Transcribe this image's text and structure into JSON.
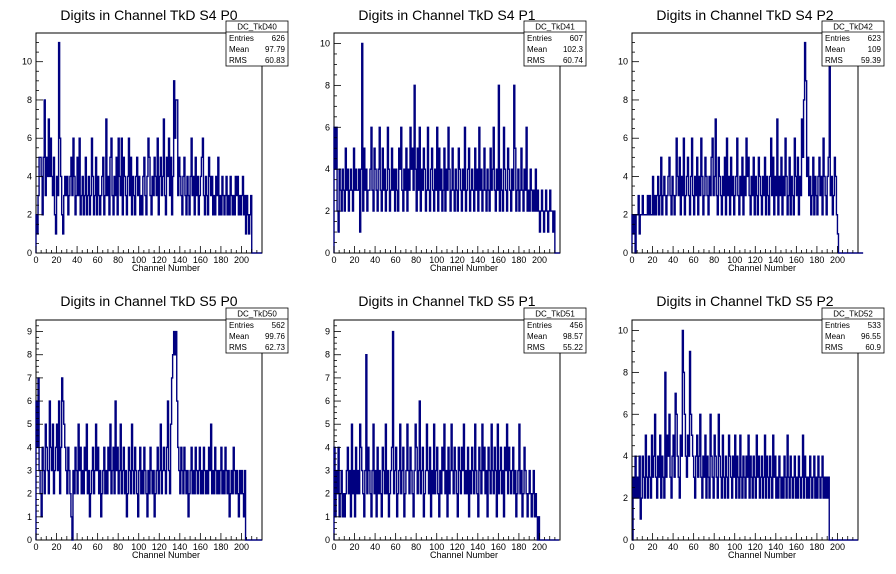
{
  "chart_data": [
    {
      "type": "bar",
      "id": "DC_TkD40",
      "title": "Digits in Channel TkD S4 P0",
      "xlabel": "Channel Number",
      "ylabel": "",
      "xlim": [
        0,
        220
      ],
      "ylim": [
        0,
        11.5
      ],
      "xticks": [
        0,
        20,
        40,
        60,
        80,
        100,
        120,
        140,
        160,
        180,
        200
      ],
      "yticks": [
        0,
        2,
        4,
        6,
        8,
        10
      ],
      "stats": {
        "name": "DC_TkD40",
        "rows": [
          [
            "Entries",
            "626"
          ],
          [
            "Mean",
            "97.79"
          ],
          [
            "RMS",
            "60.83"
          ]
        ]
      },
      "values": [
        2,
        1,
        3,
        5,
        5,
        4,
        2,
        5,
        8,
        3,
        5,
        4,
        7,
        4,
        6,
        4,
        3,
        5,
        2,
        1,
        4,
        3,
        11,
        6,
        4,
        2,
        1,
        3,
        4,
        3,
        4,
        2,
        3,
        4,
        5,
        3,
        6,
        4,
        2,
        3,
        5,
        3,
        6,
        2,
        3,
        4,
        2,
        3,
        5,
        2,
        3,
        4,
        2,
        3,
        6,
        4,
        2,
        3,
        5,
        2,
        4,
        3,
        2,
        3,
        4,
        5,
        2,
        3,
        7,
        3,
        4,
        2,
        5,
        6,
        3,
        2,
        4,
        3,
        5,
        2,
        6,
        4,
        3,
        6,
        2,
        5,
        4,
        3,
        2,
        4,
        6,
        3,
        5,
        2,
        4,
        3,
        2,
        4,
        5,
        3,
        4,
        2,
        3,
        2,
        4,
        5,
        3,
        2,
        4,
        6,
        5,
        3,
        2,
        4,
        3,
        5,
        4,
        3,
        6,
        2,
        4,
        5,
        3,
        4,
        7,
        3,
        2,
        5,
        4,
        6,
        3,
        5,
        2,
        4,
        9,
        6,
        8,
        8,
        3,
        5,
        4,
        3,
        2,
        4,
        5,
        3,
        2,
        4,
        3,
        2,
        4,
        6,
        3,
        4,
        2,
        5,
        3,
        4,
        2,
        3,
        4,
        5,
        6,
        3,
        2,
        4,
        3,
        2,
        5,
        4,
        3,
        4,
        2,
        3,
        2,
        4,
        3,
        5,
        2,
        3,
        2,
        4,
        3,
        2,
        3,
        4,
        2,
        3,
        2,
        4,
        3,
        2,
        3,
        2,
        4,
        3,
        4,
        2,
        3,
        2,
        3,
        4,
        2,
        3,
        1,
        3,
        2,
        1,
        2,
        3,
        0,
        0,
        0,
        0,
        0,
        0,
        0,
        0,
        0,
        0
      ]
    },
    {
      "type": "bar",
      "id": "DC_TkD41",
      "title": "Digits in Channel TkD S4 P1",
      "xlabel": "Channel Number",
      "ylabel": "",
      "xlim": [
        0,
        220
      ],
      "ylim": [
        0,
        10.5
      ],
      "xticks": [
        0,
        20,
        40,
        60,
        80,
        100,
        120,
        140,
        160,
        180,
        200
      ],
      "yticks": [
        0,
        2,
        4,
        6,
        8,
        10
      ],
      "stats": {
        "name": "DC_TkD41",
        "rows": [
          [
            "Entries",
            "607"
          ],
          [
            "Mean",
            "102.3"
          ],
          [
            "RMS",
            "60.74"
          ]
        ]
      },
      "values": [
        6,
        4,
        6,
        2,
        1,
        4,
        3,
        2,
        4,
        3,
        2,
        5,
        3,
        4,
        2,
        3,
        4,
        3,
        2,
        5,
        3,
        4,
        3,
        3,
        4,
        1,
        4,
        10,
        2,
        5,
        3,
        4,
        2,
        3,
        3,
        4,
        6,
        3,
        2,
        5,
        4,
        3,
        2,
        4,
        6,
        3,
        2,
        5,
        3,
        4,
        2,
        3,
        6,
        4,
        2,
        3,
        5,
        3,
        4,
        2,
        4,
        3,
        2,
        5,
        4,
        6,
        3,
        2,
        4,
        3,
        5,
        2,
        4,
        3,
        6,
        4,
        5,
        3,
        8,
        4,
        2,
        5,
        3,
        6,
        2,
        4,
        3,
        5,
        4,
        2,
        3,
        6,
        3,
        2,
        4,
        5,
        3,
        2,
        4,
        3,
        6,
        2,
        5,
        3,
        4,
        2,
        3,
        5,
        2,
        4,
        3,
        6,
        4,
        2,
        3,
        5,
        3,
        2,
        4,
        3,
        2,
        5,
        4,
        3,
        2,
        4,
        3,
        6,
        2,
        3,
        4,
        5,
        2,
        3,
        4,
        3,
        2,
        5,
        3,
        4,
        2,
        6,
        3,
        4,
        2,
        3,
        5,
        3,
        2,
        4,
        3,
        2,
        5,
        3,
        4,
        6,
        3,
        2,
        4,
        3,
        8,
        2,
        4,
        3,
        2,
        6,
        4,
        3,
        2,
        5,
        4,
        3,
        2,
        4,
        3,
        8,
        5,
        2,
        3,
        4,
        2,
        3,
        5,
        3,
        2,
        4,
        3,
        6,
        2,
        3,
        2,
        4,
        3,
        2,
        3,
        2,
        4,
        2,
        3,
        2,
        1,
        2,
        3,
        2,
        1,
        2,
        3,
        2,
        1,
        2,
        3,
        2,
        2,
        1,
        2,
        0,
        0,
        0,
        0,
        0
      ]
    },
    {
      "type": "bar",
      "id": "DC_TkD42",
      "title": "Digits in Channel TkD S4 P2",
      "xlabel": "Channel Number",
      "ylabel": "",
      "xlim": [
        0,
        220
      ],
      "ylim": [
        0,
        11.5
      ],
      "xticks": [
        0,
        20,
        40,
        60,
        80,
        100,
        120,
        140,
        160,
        180,
        200
      ],
      "yticks": [
        0,
        2,
        4,
        6,
        8,
        10
      ],
      "stats": {
        "name": "DC_TkD42",
        "rows": [
          [
            "Entries",
            "623"
          ],
          [
            "Mean",
            "109"
          ],
          [
            "RMS",
            "59.39"
          ]
        ]
      },
      "values": [
        2,
        1,
        2,
        0,
        2,
        2,
        3,
        1,
        2,
        2,
        3,
        2,
        2,
        2,
        2,
        3,
        2,
        3,
        2,
        2,
        4,
        2,
        3,
        2,
        3,
        4,
        2,
        3,
        5,
        2,
        3,
        4,
        3,
        2,
        3,
        4,
        5,
        3,
        2,
        4,
        3,
        2,
        3,
        6,
        4,
        3,
        5,
        2,
        4,
        3,
        6,
        2,
        3,
        4,
        5,
        3,
        2,
        4,
        6,
        3,
        2,
        4,
        3,
        5,
        2,
        4,
        3,
        6,
        4,
        2,
        3,
        5,
        4,
        3,
        2,
        4,
        3,
        5,
        6,
        3,
        4,
        7,
        3,
        2,
        5,
        4,
        3,
        2,
        4,
        3,
        5,
        2,
        6,
        3,
        4,
        2,
        5,
        3,
        4,
        2,
        3,
        4,
        6,
        3,
        2,
        4,
        3,
        5,
        2,
        4,
        3,
        6,
        4,
        5,
        3,
        2,
        4,
        3,
        5,
        2,
        4,
        3,
        2,
        5,
        4,
        3,
        2,
        4,
        3,
        5,
        2,
        4,
        3,
        2,
        4,
        6,
        3,
        5,
        2,
        4,
        3,
        7,
        2,
        4,
        3,
        5,
        2,
        4,
        3,
        6,
        4,
        2,
        3,
        5,
        2,
        4,
        3,
        2,
        6,
        4,
        3,
        5,
        2,
        4,
        3,
        7,
        5,
        8,
        11,
        9,
        4,
        5,
        3,
        4,
        2,
        3,
        5,
        2,
        4,
        3,
        2,
        4,
        5,
        3,
        4,
        2,
        6,
        4,
        3,
        2,
        4,
        5,
        10,
        3,
        4,
        2,
        3,
        5,
        4,
        2,
        1,
        0,
        0,
        0,
        0,
        0,
        0,
        0,
        0,
        0,
        0,
        0,
        0,
        0,
        0,
        0,
        0,
        0,
        0,
        0,
        0,
        0,
        0,
        0,
        0
      ]
    },
    {
      "type": "bar",
      "id": "DC_TkD50",
      "title": "Digits in Channel TkD S5 P0",
      "xlabel": "Channel Number",
      "ylabel": "",
      "xlim": [
        0,
        220
      ],
      "ylim": [
        0,
        9.5
      ],
      "xticks": [
        0,
        20,
        40,
        60,
        80,
        100,
        120,
        140,
        160,
        180,
        200
      ],
      "yticks": [
        0,
        1,
        2,
        3,
        4,
        5,
        6,
        7,
        8,
        9
      ],
      "stats": {
        "name": "DC_TkD50",
        "rows": [
          [
            "Entries",
            "562"
          ],
          [
            "Mean",
            "99.76"
          ],
          [
            "RMS",
            "62.73"
          ]
        ]
      },
      "values": [
        6,
        4,
        7,
        3,
        2,
        1,
        4,
        3,
        2,
        5,
        4,
        3,
        2,
        6,
        4,
        3,
        5,
        2,
        3,
        4,
        5,
        3,
        6,
        2,
        4,
        7,
        6,
        5,
        4,
        3,
        2,
        4,
        3,
        2,
        1,
        0,
        3,
        2,
        4,
        3,
        2,
        5,
        3,
        4,
        2,
        3,
        2,
        4,
        3,
        5,
        2,
        3,
        1,
        2,
        3,
        4,
        2,
        3,
        5,
        3,
        4,
        2,
        3,
        1,
        2,
        3,
        4,
        2,
        3,
        2,
        4,
        3,
        5,
        2,
        3,
        4,
        2,
        6,
        3,
        4,
        2,
        3,
        5,
        2,
        3,
        4,
        2,
        3,
        1,
        2,
        4,
        3,
        2,
        5,
        3,
        2,
        4,
        3,
        2,
        1,
        3,
        4,
        2,
        3,
        2,
        4,
        3,
        2,
        1,
        3,
        2,
        4,
        3,
        2,
        3,
        1,
        2,
        3,
        4,
        2,
        3,
        5,
        2,
        3,
        4,
        3,
        2,
        4,
        6,
        3,
        2,
        5,
        7,
        8,
        9,
        8,
        9,
        6,
        4,
        3,
        2,
        4,
        3,
        2,
        4,
        3,
        2,
        3,
        1,
        2,
        3,
        4,
        2,
        3,
        2,
        4,
        3,
        2,
        3,
        4,
        2,
        3,
        2,
        4,
        3,
        2,
        3,
        2,
        4,
        3,
        5,
        2,
        3,
        2,
        4,
        3,
        2,
        3,
        2,
        3,
        4,
        2,
        3,
        2,
        4,
        3,
        2,
        3,
        1,
        2,
        3,
        2,
        4,
        3,
        2,
        3,
        2,
        1,
        3,
        2,
        3,
        2,
        1,
        3,
        0,
        0,
        0,
        0,
        0,
        0,
        0,
        0,
        0,
        0,
        0,
        0,
        0,
        0,
        0,
        0
      ]
    },
    {
      "type": "bar",
      "id": "DC_TkD51",
      "title": "Digits in Channel TkD S5 P1",
      "xlabel": "Channel Number",
      "ylabel": "",
      "xlim": [
        0,
        220
      ],
      "ylim": [
        0,
        9.5
      ],
      "xticks": [
        0,
        20,
        40,
        60,
        80,
        100,
        120,
        140,
        160,
        180,
        200
      ],
      "yticks": [
        0,
        1,
        2,
        3,
        4,
        5,
        6,
        7,
        8,
        9
      ],
      "stats": {
        "name": "DC_TkD51",
        "rows": [
          [
            "Entries",
            "456"
          ],
          [
            "Mean",
            "98.57"
          ],
          [
            "RMS",
            "55.22"
          ]
        ]
      },
      "values": [
        4,
        1,
        3,
        2,
        4,
        1,
        2,
        3,
        1,
        2,
        1,
        2,
        3,
        4,
        2,
        3,
        1,
        5,
        2,
        3,
        1,
        4,
        2,
        3,
        2,
        5,
        4,
        3,
        2,
        1,
        3,
        8,
        2,
        4,
        3,
        2,
        1,
        3,
        5,
        2,
        3,
        1,
        4,
        2,
        3,
        2,
        1,
        4,
        3,
        2,
        5,
        2,
        3,
        1,
        2,
        3,
        4,
        9,
        2,
        3,
        4,
        1,
        2,
        3,
        5,
        2,
        3,
        4,
        1,
        2,
        3,
        5,
        3,
        2,
        4,
        3,
        2,
        1,
        3,
        5,
        4,
        2,
        3,
        6,
        2,
        3,
        4,
        1,
        2,
        3,
        5,
        3,
        2,
        4,
        1,
        3,
        2,
        5,
        2,
        3,
        4,
        2,
        1,
        3,
        2,
        4,
        3,
        5,
        2,
        3,
        1,
        4,
        2,
        3,
        5,
        3,
        2,
        4,
        3,
        2,
        1,
        4,
        3,
        2,
        4,
        3,
        5,
        2,
        3,
        2,
        4,
        1,
        3,
        2,
        4,
        3,
        2,
        5,
        3,
        2,
        1,
        4,
        3,
        2,
        5,
        3,
        4,
        2,
        3,
        1,
        4,
        3,
        2,
        5,
        3,
        2,
        4,
        3,
        1,
        5,
        2,
        3,
        4,
        2,
        3,
        1,
        4,
        3,
        5,
        2,
        4,
        3,
        2,
        3,
        4,
        2,
        3,
        1,
        2,
        3,
        5,
        2,
        3,
        1,
        2,
        4,
        3,
        2,
        1,
        2,
        3,
        2,
        1,
        2,
        3,
        1,
        2,
        1,
        0,
        1,
        0,
        0,
        0,
        0,
        0,
        0,
        0,
        0,
        0,
        0,
        0,
        0,
        0,
        0,
        0,
        0,
        0,
        0,
        0
      ]
    },
    {
      "type": "bar",
      "id": "DC_TkD52",
      "title": "Digits in Channel TkD S5 P2",
      "xlabel": "Channel Number",
      "ylabel": "",
      "xlim": [
        0,
        220
      ],
      "ylim": [
        0,
        10.5
      ],
      "xticks": [
        0,
        20,
        40,
        60,
        80,
        100,
        120,
        140,
        160,
        180,
        200
      ],
      "yticks": [
        0,
        2,
        4,
        6,
        8,
        10
      ],
      "stats": {
        "name": "DC_TkD52",
        "rows": [
          [
            "Entries",
            "533"
          ],
          [
            "Mean",
            "96.55"
          ],
          [
            "RMS",
            "60.9"
          ]
        ]
      },
      "values": [
        0,
        3,
        2,
        4,
        2,
        3,
        2,
        4,
        1,
        2,
        4,
        3,
        2,
        5,
        3,
        2,
        4,
        3,
        2,
        5,
        3,
        4,
        6,
        3,
        2,
        4,
        3,
        5,
        2,
        4,
        3,
        2,
        8,
        3,
        5,
        4,
        6,
        3,
        2,
        4,
        5,
        3,
        7,
        6,
        4,
        3,
        2,
        5,
        4,
        10,
        8,
        6,
        4,
        3,
        5,
        4,
        9,
        6,
        5,
        4,
        3,
        2,
        4,
        5,
        3,
        4,
        6,
        3,
        2,
        4,
        3,
        5,
        2,
        4,
        3,
        2,
        6,
        4,
        3,
        2,
        5,
        4,
        3,
        2,
        6,
        4,
        3,
        2,
        5,
        3,
        2,
        4,
        3,
        2,
        5,
        4,
        3,
        2,
        4,
        3,
        5,
        2,
        4,
        3,
        2,
        5,
        3,
        2,
        4,
        3,
        2,
        4,
        3,
        5,
        2,
        4,
        3,
        2,
        4,
        3,
        2,
        5,
        3,
        4,
        2,
        3,
        4,
        2,
        3,
        5,
        2,
        4,
        3,
        2,
        4,
        3,
        2,
        5,
        3,
        4,
        2,
        3,
        2,
        4,
        3,
        2,
        3,
        2,
        4,
        3,
        2,
        5,
        3,
        2,
        4,
        3,
        2,
        3,
        4,
        2,
        3,
        2,
        4,
        3,
        2,
        3,
        5,
        2,
        4,
        3,
        2,
        3,
        2,
        4,
        3,
        2,
        3,
        4,
        2,
        3,
        2,
        4,
        3,
        2,
        3,
        4,
        2,
        3,
        2,
        3,
        2,
        3,
        0,
        0,
        0,
        0,
        0,
        0,
        0,
        0,
        0,
        0,
        0,
        0,
        0,
        0,
        0,
        0,
        0,
        0,
        0,
        0,
        0,
        0,
        0,
        0,
        0,
        0,
        0,
        0
      ]
    }
  ]
}
